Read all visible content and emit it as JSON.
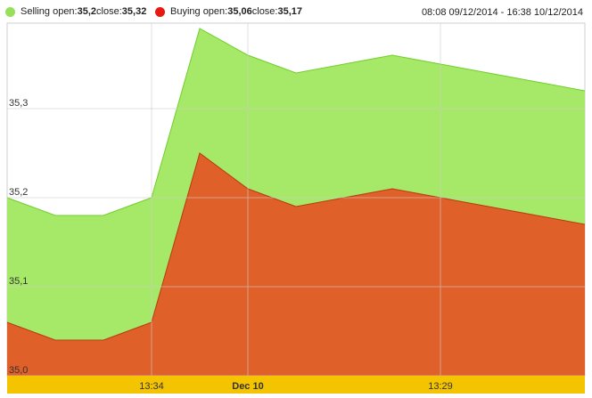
{
  "legend": {
    "selling": {
      "label": "Selling open:",
      "open": "35,2",
      "close_label": " close:",
      "close": "35,32",
      "color": "#99e05a"
    },
    "buying": {
      "label": "Buying open:",
      "open": "35,06",
      "close_label": " close:",
      "close": "35,17",
      "color": "#e8190f"
    }
  },
  "period": "08:08 09/12/2014 - 16:38 10/12/2014",
  "chart_data": {
    "type": "area",
    "ylim": [
      35.0,
      35.3
    ],
    "y_ticks": [
      {
        "value": 35.0,
        "label": "35,0"
      },
      {
        "value": 35.1,
        "label": "35,1"
      },
      {
        "value": 35.2,
        "label": "35,2"
      },
      {
        "value": 35.3,
        "label": "35,3"
      }
    ],
    "x_ticks": [
      {
        "index": 3,
        "label": "13:34",
        "bold": false
      },
      {
        "index": 5,
        "label": "Dec 10",
        "bold": true
      },
      {
        "index": 9,
        "label": "13:29",
        "bold": false
      }
    ],
    "series": [
      {
        "id": "selling",
        "color": "#a6e868",
        "stroke": "#6fcf2a",
        "values": [
          35.2,
          35.18,
          35.18,
          35.2,
          35.39,
          35.36,
          35.34,
          35.35,
          35.36,
          35.35,
          35.34,
          35.33,
          35.32
        ]
      },
      {
        "id": "buying",
        "color": "#e0602a",
        "stroke": "#b83a10",
        "values": [
          35.06,
          35.04,
          35.04,
          35.06,
          35.25,
          35.21,
          35.19,
          35.2,
          35.21,
          35.2,
          35.19,
          35.18,
          35.17
        ]
      }
    ],
    "x_positions": [
      0,
      1,
      2,
      3,
      4,
      5,
      6,
      7,
      8,
      9,
      10,
      11,
      12
    ],
    "axis_band_color": "#f5c400",
    "grid": true
  }
}
